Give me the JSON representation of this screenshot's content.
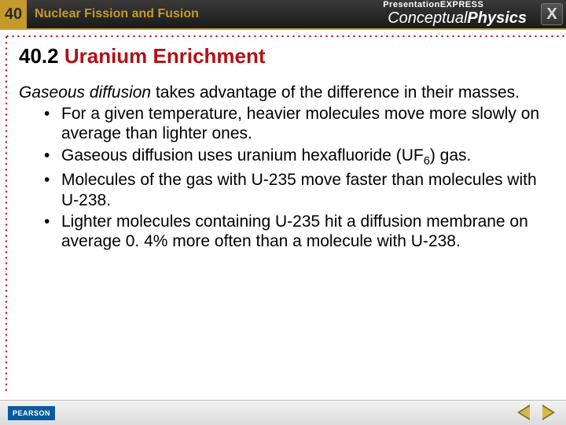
{
  "topbar": {
    "chapter_number": "40",
    "chapter_title": "Nuclear Fission and Fusion",
    "brand_small": "PresentationEXPRESS",
    "brand_main_a": "Conceptual",
    "brand_main_b": "Physics",
    "close_label": "X"
  },
  "heading": {
    "number": "40.2",
    "title": "Uranium Enrichment"
  },
  "intro": {
    "term": "Gaseous diffusion",
    "rest": " takes advantage of the difference in their masses."
  },
  "bullets": [
    "For a given temperature, heavier molecules move more slowly on average than lighter ones.",
    "Gaseous diffusion uses uranium hexafluoride (UF6) gas.",
    "Molecules of the gas with U-235 move faster than molecules with U-238.",
    "Lighter molecules containing U-235 hit a diffusion membrane on average 0. 4% more often than a molecule with U-238."
  ],
  "footer": {
    "publisher": "PEARSON"
  },
  "colors": {
    "accent_red": "#b11116",
    "accent_gold": "#c49a2a"
  }
}
